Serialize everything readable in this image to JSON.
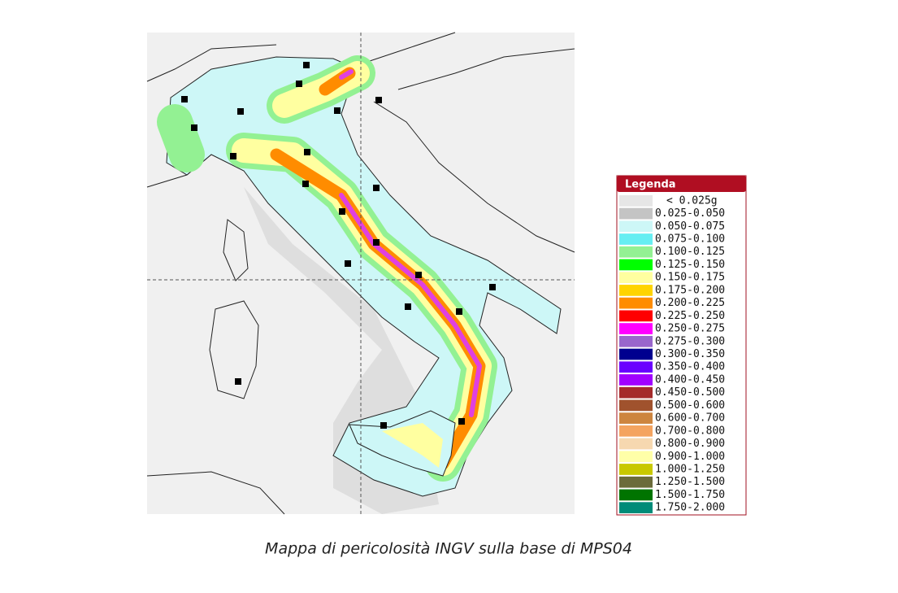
{
  "legend": {
    "title": "Legenda",
    "entries": [
      {
        "label": "< 0.025g",
        "color": "#e6e6e6"
      },
      {
        "label": "0.025-0.050",
        "color": "#c4c4c4"
      },
      {
        "label": "0.050-0.075",
        "color": "#cdf7f7"
      },
      {
        "label": "0.075-0.100",
        "color": "#66eef2"
      },
      {
        "label": "0.100-0.125",
        "color": "#93f193"
      },
      {
        "label": "0.125-0.150",
        "color": "#00ff00"
      },
      {
        "label": "0.150-0.175",
        "color": "#ffffa0"
      },
      {
        "label": "0.175-0.200",
        "color": "#ffd400"
      },
      {
        "label": "0.200-0.225",
        "color": "#ff8c00"
      },
      {
        "label": "0.225-0.250",
        "color": "#ff0000"
      },
      {
        "label": "0.250-0.275",
        "color": "#ff00ff"
      },
      {
        "label": "0.275-0.300",
        "color": "#9966cc"
      },
      {
        "label": "0.300-0.350",
        "color": "#00008f"
      },
      {
        "label": "0.350-0.400",
        "color": "#6a00ff"
      },
      {
        "label": "0.400-0.450",
        "color": "#a100ff"
      },
      {
        "label": "0.450-0.500",
        "color": "#a52a2a"
      },
      {
        "label": "0.500-0.600",
        "color": "#a0522d"
      },
      {
        "label": "0.600-0.700",
        "color": "#cd853f"
      },
      {
        "label": "0.700-0.800",
        "color": "#f4a460"
      },
      {
        "label": "0.800-0.900",
        "color": "#f6d8b0"
      },
      {
        "label": "0.900-1.000",
        "color": "#ffffa8"
      },
      {
        "label": "1.000-1.250",
        "color": "#c8c800"
      },
      {
        "label": "1.250-1.500",
        "color": "#6b6b3a"
      },
      {
        "label": "1.500-1.750",
        "color": "#007400"
      },
      {
        "label": "1.750-2.000",
        "color": "#008b78"
      }
    ]
  },
  "caption": "Mappa di pericolosità INGV sulla base di MPS04"
}
